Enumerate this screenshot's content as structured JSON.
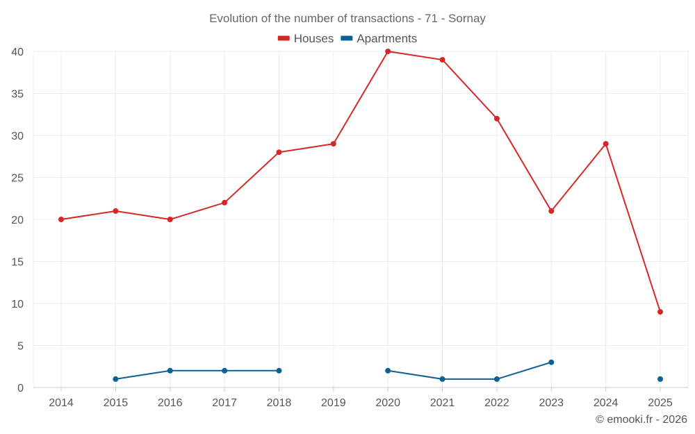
{
  "chart_data": {
    "type": "line",
    "title": "Evolution of the number of transactions - 71 - Sornay",
    "xlabel": "",
    "ylabel": "",
    "categories": [
      "2014",
      "2015",
      "2016",
      "2017",
      "2018",
      "2019",
      "2020",
      "2021",
      "2022",
      "2023",
      "2024",
      "2025"
    ],
    "ylim": [
      0,
      40
    ],
    "yticks": [
      0,
      5,
      10,
      15,
      20,
      25,
      30,
      35,
      40
    ],
    "grid": true,
    "legend_position": "top-center",
    "series": [
      {
        "name": "Houses",
        "color": "#d62728",
        "values": [
          20,
          21,
          20,
          22,
          28,
          29,
          40,
          39,
          32,
          21,
          29,
          9
        ]
      },
      {
        "name": "Apartments",
        "color": "#0b6194",
        "values": [
          null,
          1,
          2,
          2,
          2,
          null,
          2,
          1,
          1,
          3,
          null,
          1
        ]
      }
    ]
  },
  "credit": "© emooki.fr - 2026"
}
